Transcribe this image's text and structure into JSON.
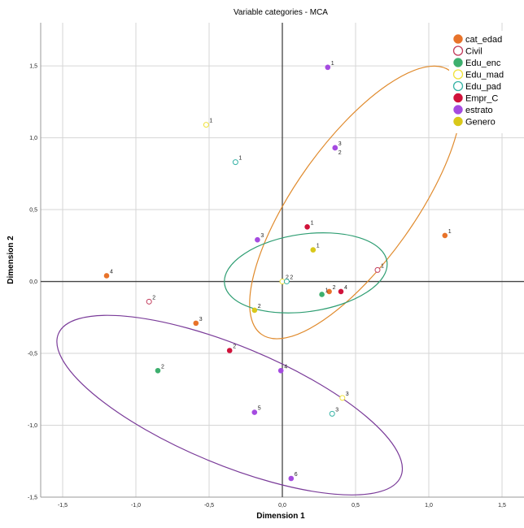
{
  "chart_data": {
    "type": "scatter",
    "title": "Variable categories - MCA",
    "xlabel": "Dimension 1",
    "ylabel": "Dimension 2",
    "xlim": [
      -1.65,
      1.65
    ],
    "ylim": [
      -1.5,
      1.8
    ],
    "xticks": [
      -1.5,
      -1.0,
      -0.5,
      0.0,
      0.5,
      1.0,
      1.5
    ],
    "xtick_labels": [
      "-1,5",
      "-1,0",
      "-0,5",
      "0,0",
      "0,5",
      "1,0",
      "1,5"
    ],
    "yticks": [
      1.5,
      1.0,
      0.5,
      0.0,
      -0.5,
      -1.0,
      -1.5
    ],
    "ytick_labels": [
      "1,5",
      "1,0",
      "0,5",
      "0,0",
      "-0,5",
      "-1,0",
      "-1,5"
    ],
    "grid": true,
    "legend_position": "top-right",
    "series": [
      {
        "name": "cat_edad",
        "color": "#e8732a",
        "filled": true,
        "points": [
          {
            "label": "1",
            "x": 1.11,
            "y": 0.32
          },
          {
            "label": "2",
            "x": 0.32,
            "y": -0.07
          },
          {
            "label": "3",
            "x": -0.59,
            "y": -0.29
          },
          {
            "label": "4",
            "x": -1.2,
            "y": 0.04
          }
        ]
      },
      {
        "name": "Civil",
        "color": "#c23b5b",
        "filled": false,
        "points": [
          {
            "label": "1",
            "x": 0.65,
            "y": 0.08
          },
          {
            "label": "2",
            "x": -0.91,
            "y": -0.14
          }
        ]
      },
      {
        "name": "Edu_enc",
        "color": "#3daf6e",
        "filled": true,
        "points": [
          {
            "label": "1",
            "x": 0.27,
            "y": -0.09
          },
          {
            "label": "2",
            "x": -0.85,
            "y": -0.62
          }
        ]
      },
      {
        "name": "Edu_mad",
        "color": "#f0e23a",
        "filled": false,
        "points": [
          {
            "label": "1",
            "x": -0.52,
            "y": 1.09
          },
          {
            "label": "2",
            "x": 0.0,
            "y": 0.0
          },
          {
            "label": "3",
            "x": 0.41,
            "y": -0.81
          }
        ]
      },
      {
        "name": "Edu_pad",
        "color": "#36b3a6",
        "filled": false,
        "points": [
          {
            "label": "1",
            "x": -0.32,
            "y": 0.83
          },
          {
            "label": "2",
            "x": 0.03,
            "y": 0.0
          },
          {
            "label": "3",
            "x": 0.34,
            "y": -0.92
          }
        ]
      },
      {
        "name": "Empr_C",
        "color": "#d0123a",
        "filled": true,
        "points": [
          {
            "label": "1",
            "x": 0.17,
            "y": 0.38
          },
          {
            "label": "2",
            "x": -0.36,
            "y": -0.48
          },
          {
            "label": "4",
            "x": 0.4,
            "y": -0.07
          }
        ]
      },
      {
        "name": "estrato",
        "color": "#a54be0",
        "filled": true,
        "points": [
          {
            "label": "1",
            "x": 0.31,
            "y": 1.49
          },
          {
            "label": "3",
            "x": 0.36,
            "y": 0.93
          },
          {
            "label": "2",
            "x": 0.36,
            "y": 0.93
          },
          {
            "label": "3",
            "x": -0.17,
            "y": 0.29
          },
          {
            "label": "4",
            "x": -0.01,
            "y": -0.62
          },
          {
            "label": "5",
            "x": -0.19,
            "y": -0.91
          },
          {
            "label": "6",
            "x": 0.06,
            "y": -1.37
          }
        ]
      },
      {
        "name": "Genero",
        "color": "#d9c81a",
        "filled": true,
        "points": [
          {
            "label": "1",
            "x": 0.21,
            "y": 0.22
          },
          {
            "label": "2",
            "x": -0.19,
            "y": -0.2
          }
        ]
      }
    ],
    "ellipses": [
      {
        "cx": 0.5,
        "cy": 0.55,
        "rx": 1.12,
        "ry": 0.41,
        "angle": 55,
        "color": "#e08a2c"
      },
      {
        "cx": 0.16,
        "cy": 0.06,
        "rx": 0.56,
        "ry": 0.27,
        "angle": 8,
        "color": "#2f9e73"
      },
      {
        "cx": -0.36,
        "cy": -0.86,
        "rx": 1.27,
        "ry": 0.41,
        "angle": 337,
        "color": "#7a3b99"
      }
    ]
  }
}
